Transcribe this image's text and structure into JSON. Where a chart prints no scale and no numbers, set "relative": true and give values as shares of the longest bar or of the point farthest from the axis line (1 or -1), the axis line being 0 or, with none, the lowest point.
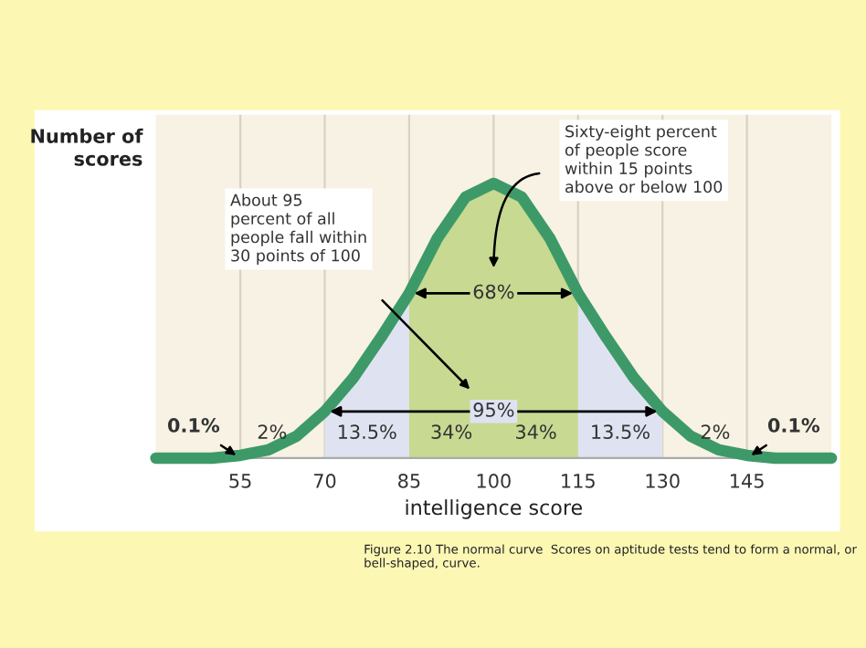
{
  "chart_data": {
    "type": "line",
    "relative": true,
    "x": [
      40,
      45,
      50,
      55,
      60,
      65,
      70,
      75,
      80,
      85,
      90,
      95,
      100,
      105,
      110,
      115,
      120,
      125,
      130,
      135,
      140,
      145,
      150,
      155,
      160
    ],
    "series": [
      {
        "color": "#3d9a68",
        "values": [
          0,
          0,
          0,
          0.01,
          0.03,
          0.08,
          0.17,
          0.29,
          0.44,
          0.6,
          0.8,
          0.95,
          1,
          0.95,
          0.8,
          0.6,
          0.44,
          0.29,
          0.17,
          0.08,
          0.03,
          0.01,
          0,
          0,
          0
        ]
      }
    ],
    "xlim": [
      40,
      160
    ],
    "xticks": [
      55,
      70,
      85,
      100,
      115,
      130,
      145
    ],
    "grid": "x",
    "marker": "none",
    "line_style": "solid",
    "xlabel": "intelligence score",
    "ylabel": "Number of scores",
    "bands": [
      {
        "axis": "x",
        "from": 70,
        "to": 130,
        "label": "95%",
        "color": "#dfe3f1"
      },
      {
        "axis": "x",
        "from": 85,
        "to": 115,
        "label": "68%",
        "color": "#c8d992"
      }
    ],
    "annotations": [
      "Sixty-eight percent\nof people score\nwithin 15 points\nabove or below 100",
      "About 95\npercent of all\npeople fall within\n30 points of 100",
      {
        "text": "0.1%",
        "x": 55,
        "y": 0
      },
      "2%",
      "13.5%",
      "34%",
      "34%",
      "13.5%",
      "2%",
      {
        "text": "0.1%",
        "x": 145,
        "y": 0
      },
      "Figure 2.10 The normal curve  Scores on aptitude tests tend to form a normal, or bell-shaped, curve."
    ]
  }
}
